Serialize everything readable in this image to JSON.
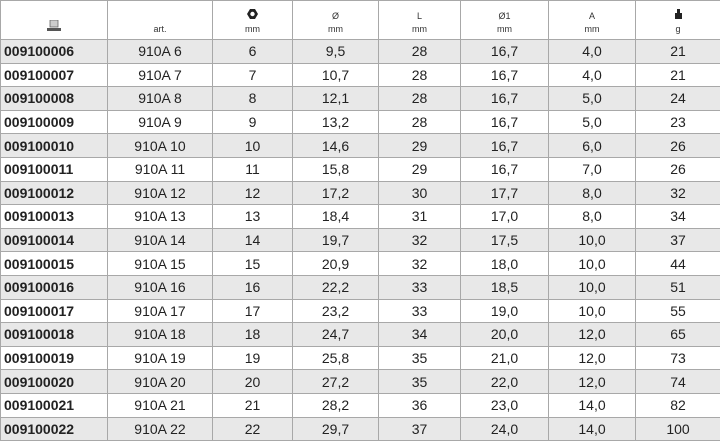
{
  "header": {
    "columns": [
      {
        "icon": "catalog-number-icon",
        "label": "",
        "unit": ""
      },
      {
        "icon": "",
        "label": "art.",
        "unit": ""
      },
      {
        "icon": "hex-nut-icon",
        "label": "",
        "unit": "mm"
      },
      {
        "icon": "",
        "label": "Ø",
        "unit": "mm"
      },
      {
        "icon": "",
        "label": "L",
        "unit": "mm"
      },
      {
        "icon": "",
        "label": "Ø1",
        "unit": "mm"
      },
      {
        "icon": "",
        "label": "A",
        "unit": "mm"
      },
      {
        "icon": "weight-icon",
        "label": "",
        "unit": "g"
      }
    ]
  },
  "rows": [
    [
      "009100006",
      "910A 6",
      "6",
      "9,5",
      "28",
      "16,7",
      "4,0",
      "21"
    ],
    [
      "009100007",
      "910A 7",
      "7",
      "10,7",
      "28",
      "16,7",
      "4,0",
      "21"
    ],
    [
      "009100008",
      "910A 8",
      "8",
      "12,1",
      "28",
      "16,7",
      "5,0",
      "24"
    ],
    [
      "009100009",
      "910A 9",
      "9",
      "13,2",
      "28",
      "16,7",
      "5,0",
      "23"
    ],
    [
      "009100010",
      "910A 10",
      "10",
      "14,6",
      "29",
      "16,7",
      "6,0",
      "26"
    ],
    [
      "009100011",
      "910A 11",
      "11",
      "15,8",
      "29",
      "16,7",
      "7,0",
      "26"
    ],
    [
      "009100012",
      "910A 12",
      "12",
      "17,2",
      "30",
      "17,7",
      "8,0",
      "32"
    ],
    [
      "009100013",
      "910A 13",
      "13",
      "18,4",
      "31",
      "17,0",
      "8,0",
      "34"
    ],
    [
      "009100014",
      "910A 14",
      "14",
      "19,7",
      "32",
      "17,5",
      "10,0",
      "37"
    ],
    [
      "009100015",
      "910A 15",
      "15",
      "20,9",
      "32",
      "18,0",
      "10,0",
      "44"
    ],
    [
      "009100016",
      "910A 16",
      "16",
      "22,2",
      "33",
      "18,5",
      "10,0",
      "51"
    ],
    [
      "009100017",
      "910A 17",
      "17",
      "23,2",
      "33",
      "19,0",
      "10,0",
      "55"
    ],
    [
      "009100018",
      "910A 18",
      "18",
      "24,7",
      "34",
      "20,0",
      "12,0",
      "65"
    ],
    [
      "009100019",
      "910A 19",
      "19",
      "25,8",
      "35",
      "21,0",
      "12,0",
      "73"
    ],
    [
      "009100020",
      "910A 20",
      "20",
      "27,2",
      "35",
      "22,0",
      "12,0",
      "74"
    ],
    [
      "009100021",
      "910A 21",
      "21",
      "28,2",
      "36",
      "23,0",
      "14,0",
      "82"
    ],
    [
      "009100022",
      "910A 22",
      "22",
      "29,7",
      "37",
      "24,0",
      "14,0",
      "100"
    ]
  ]
}
